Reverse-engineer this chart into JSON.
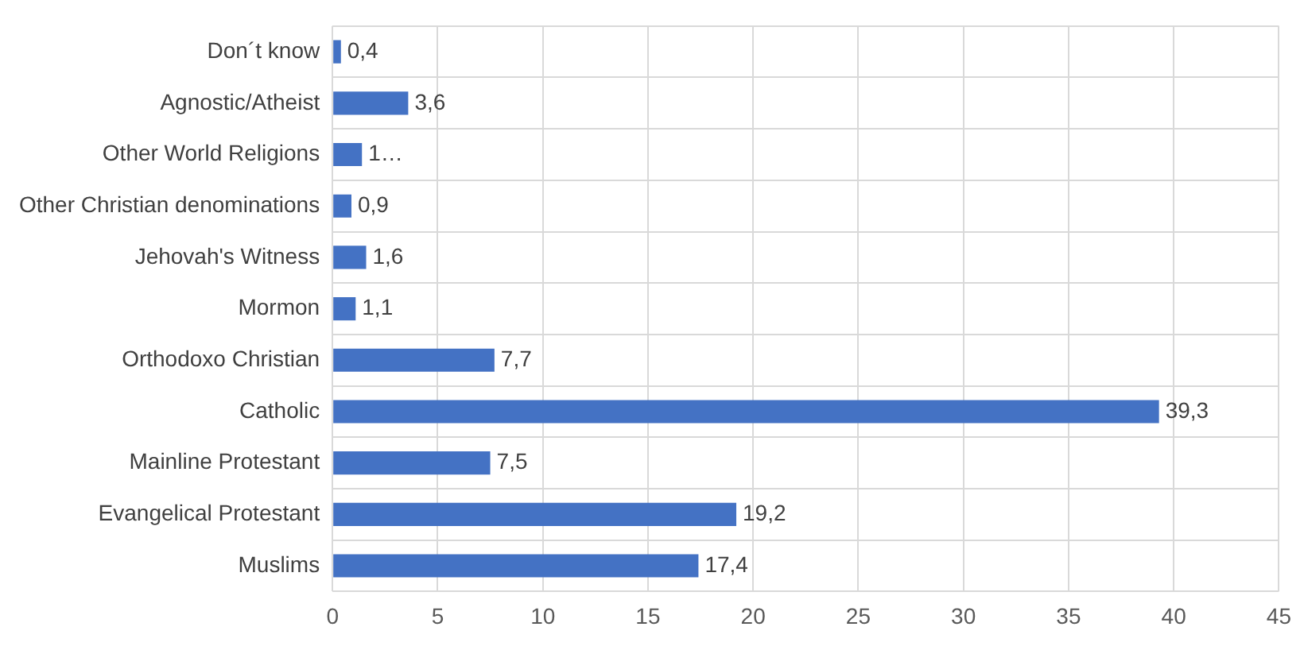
{
  "chart_data": {
    "type": "bar",
    "orientation": "horizontal",
    "categories": [
      "Don´t know",
      "Agnostic/Atheist",
      "Other World Religions",
      "Other Christian denominations",
      "Jehovah's Witness",
      "Mormon",
      "Orthodoxo Christian",
      "Catholic",
      "Mainline Protestant",
      "Evangelical Protestant",
      "Muslims"
    ],
    "values": [
      0.4,
      3.6,
      1.4,
      0.9,
      1.6,
      1.1,
      7.7,
      39.3,
      7.5,
      19.2,
      17.4
    ],
    "value_labels": [
      "0,4",
      "3,6",
      "1…",
      "0,9",
      "1,6",
      "1,1",
      "7,7",
      "39,3",
      "7,5",
      "19,2",
      "17,4"
    ],
    "color": "#4472c4",
    "xlim": [
      0,
      45
    ],
    "xticks": [
      0,
      5,
      10,
      15,
      20,
      25,
      30,
      35,
      40,
      45
    ],
    "grid": true,
    "legend": false
  }
}
